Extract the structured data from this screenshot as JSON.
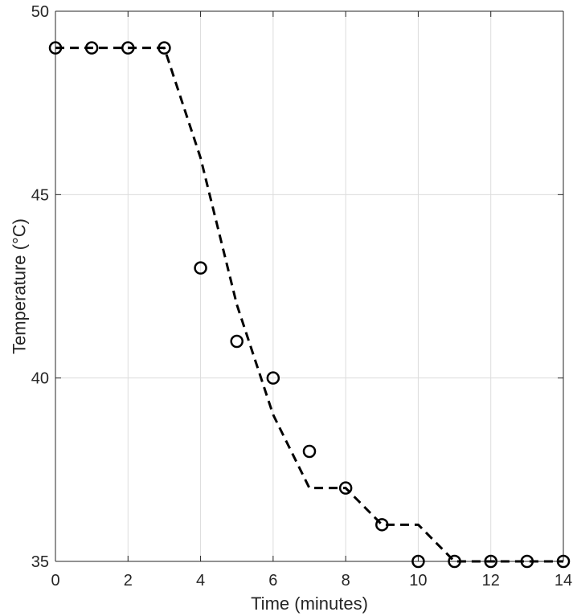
{
  "chart_data": {
    "type": "line",
    "title": "",
    "xlabel": "Time (minutes)",
    "ylabel": "Temperature (°C)",
    "xlim": [
      0,
      14
    ],
    "ylim": [
      35,
      50
    ],
    "xticks": [
      0,
      2,
      4,
      6,
      8,
      10,
      12,
      14
    ],
    "yticks": [
      35,
      40,
      45,
      50
    ],
    "xtick_labels": [
      "0",
      "2",
      "4",
      "6",
      "8",
      "10",
      "12",
      "14"
    ],
    "ytick_labels": [
      "35",
      "40",
      "45",
      "50"
    ],
    "grid": true,
    "box": true,
    "series": [
      {
        "style": "markers",
        "marker": "circle",
        "color": "#000000",
        "x": [
          0,
          1,
          2,
          3,
          4,
          5,
          6,
          7,
          8,
          9,
          10,
          11,
          12,
          13,
          14
        ],
        "y": [
          49,
          49,
          49,
          49,
          43,
          41,
          40,
          38,
          37,
          36,
          35,
          35,
          35,
          35,
          35
        ]
      },
      {
        "style": "dashed-line",
        "color": "#000000",
        "x": [
          0,
          1,
          2,
          3,
          4,
          5,
          6,
          7,
          8,
          9,
          10,
          11,
          12,
          13,
          14
        ],
        "y": [
          49,
          49,
          49,
          49,
          46,
          42,
          39,
          37,
          37,
          36,
          36,
          35,
          35,
          35,
          35
        ]
      }
    ]
  }
}
